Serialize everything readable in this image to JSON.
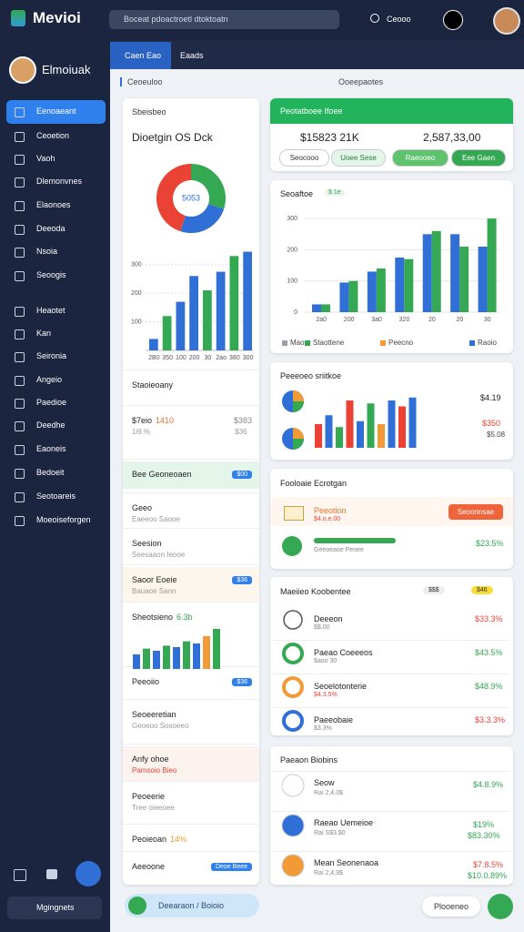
{
  "app": {
    "name": "Mevioi",
    "search": "Boceat pdoactroetl dtoktoatn",
    "account": "Ceooo"
  },
  "sidebar": {
    "user": "Elmoiuak",
    "nav": [
      "Eenoaeant",
      "Ceoetion",
      "Vaoh",
      "Dlemonvnes",
      "Elaonoes",
      "Deeoda",
      "Nsoia",
      "Seoogis",
      "Heaotet",
      "Kan",
      "Seironia",
      "Angeio",
      "Paedioe",
      "Deedhe",
      "Eaoneis",
      "Bedoeit",
      "Seotoareis",
      "Moeoiseforgen"
    ],
    "footer": "Mgingnets"
  },
  "tabs": [
    "Caen Eao",
    "Eaads"
  ],
  "sections": [
    "Ceoeuloo",
    "Ooeepaotes"
  ],
  "overview": {
    "filter": "Sbeisbeo",
    "title": "Dioetgin OS Dck",
    "donut": {
      "center": "5053",
      "values": [
        30,
        25,
        45
      ],
      "colors": [
        "#34a853",
        "#2f6fd6",
        "#ea4335"
      ]
    },
    "bars": {
      "categories": [
        "2B0",
        "350",
        "100",
        "200",
        "30",
        "2ao",
        "380",
        "300"
      ],
      "values": [
        40,
        120,
        170,
        260,
        210,
        275,
        330,
        345
      ],
      "colors": [
        "#2f6fd6",
        "#34a853",
        "#2f6fd6",
        "#2f6fd6",
        "#34a853",
        "#2f6fd6",
        "#34a853",
        "#2f6fd6"
      ],
      "ylim": [
        0,
        350
      ],
      "yticks": [
        100,
        200,
        300
      ]
    },
    "list": [
      {
        "title": "Staoieoany"
      },
      {
        "title": "$7eio",
        "tag": "1410",
        "value": "$383",
        "sub": "1i9.%",
        "sub_value": "$36"
      },
      {
        "title": "Bee Geoneoaen",
        "badge": "$00"
      },
      {
        "title": "Geeo",
        "sub": "Eaeeoo Saooe"
      },
      {
        "title": "Seesion",
        "sub": "Seesaaon Ieooe"
      },
      {
        "title": "Saoor Eoeie",
        "sub": "Bauaoe Sann",
        "badge": "$36"
      },
      {
        "title": "Sheotsieno",
        "tag": "6.3b"
      },
      {
        "title": "Peeoiio",
        "badge": "$36"
      },
      {
        "title": "Seoeeretian",
        "sub": "Geoeoo Sosoeeo"
      },
      {
        "title": "Anfy ohoe",
        "sub": "Pamsoio Bieo"
      },
      {
        "title": "Peoeerie",
        "sub": "Tree oieeoee"
      },
      {
        "title": "Peoieoan",
        "tag": "14%"
      },
      {
        "title": "Aeeoone",
        "badge": "Deoe Beee"
      }
    ],
    "trend": {
      "values": [
        20,
        28,
        25,
        32,
        30,
        38,
        35,
        45,
        55
      ],
      "colors": [
        "#2f6fd6",
        "#34a853",
        "#2f6fd6",
        "#34a853",
        "#2f6fd6",
        "#34a853",
        "#2f6fd6",
        "#f29b36",
        "#34a853"
      ]
    }
  },
  "revenue": {
    "title": "Peotatboee Ifoee",
    "primary": "$15823 21K",
    "secondary": "2,587,33,00",
    "buttons": [
      "Seocooo",
      "Uoee Sese",
      "Raeooeo",
      "Eee Gaen"
    ]
  },
  "sales": {
    "title": "Seoaftoe",
    "tag": "$ 1e",
    "categories": [
      "2a0",
      "200",
      "3a0",
      "320",
      "20",
      "20",
      "30"
    ],
    "series": [
      {
        "name": "Raoio",
        "color": "#2f6fd6",
        "values": [
          25,
          95,
          130,
          175,
          250,
          250,
          210
        ]
      },
      {
        "name": "Staottene",
        "color": "#34a853",
        "values": [
          25,
          100,
          140,
          170,
          260,
          210,
          300
        ]
      }
    ],
    "labels": [
      "Maoe",
      "Peecno"
    ],
    "ylim": [
      0,
      350
    ],
    "yticks": [
      0,
      100,
      200,
      300
    ]
  },
  "performance": {
    "title": "Peeeoeo sriitkoe",
    "values": [
      40,
      55,
      35,
      80,
      45,
      75,
      40,
      80,
      70,
      85
    ],
    "colors": [
      "#ea4335",
      "#2f6fd6",
      "#34a853",
      "#ea4335",
      "#2f6fd6",
      "#34a853",
      "#f29b36",
      "#2f6fd6",
      "#ea4335",
      "#2f6fd6"
    ],
    "stats": [
      "$4.19",
      "$350",
      "$5.08"
    ]
  },
  "campaign": {
    "title": "Fooloaie Ecrotgan",
    "item": "Peeotion",
    "item_sub": "$4.o.e.00",
    "action": "Seoonnsae",
    "progress_note": "Geeoeaoe Peoee",
    "progress_label": "$23.5%"
  },
  "market": {
    "title": "Maeiieo Koobentee",
    "pills": [
      "$$$",
      "$46"
    ],
    "rows": [
      {
        "name": "Deeeon",
        "sub": "$$.00",
        "value": "$33.3%"
      },
      {
        "name": "Paeao Coeeeos",
        "sub": "$aoo 30",
        "value": "$43.5%"
      },
      {
        "name": "Seoelotonterie",
        "sub": "$4.3.5%",
        "value": "$48.9%"
      },
      {
        "name": "Paeeobaie",
        "sub": "$3.3%",
        "value": "$3.3.3%"
      }
    ]
  },
  "pipeline": {
    "title": "Paeaon Biobins",
    "rows": [
      {
        "name": "Seow",
        "sub": "Rai 2,4,0$",
        "value": "$4.8.9%"
      },
      {
        "name": "Raeao Uemeioe",
        "sub": "Rai S$3.$0",
        "value": "$19%",
        "value2": "$83.30%"
      },
      {
        "name": "Mean Seonenaoa",
        "sub": "Rai 2,4,9$",
        "value": "$7.8.5%",
        "value2": "$10.0.89%"
      }
    ]
  },
  "footer": {
    "left": "Deearaon / Boioio",
    "right": "Plooeneo"
  }
}
